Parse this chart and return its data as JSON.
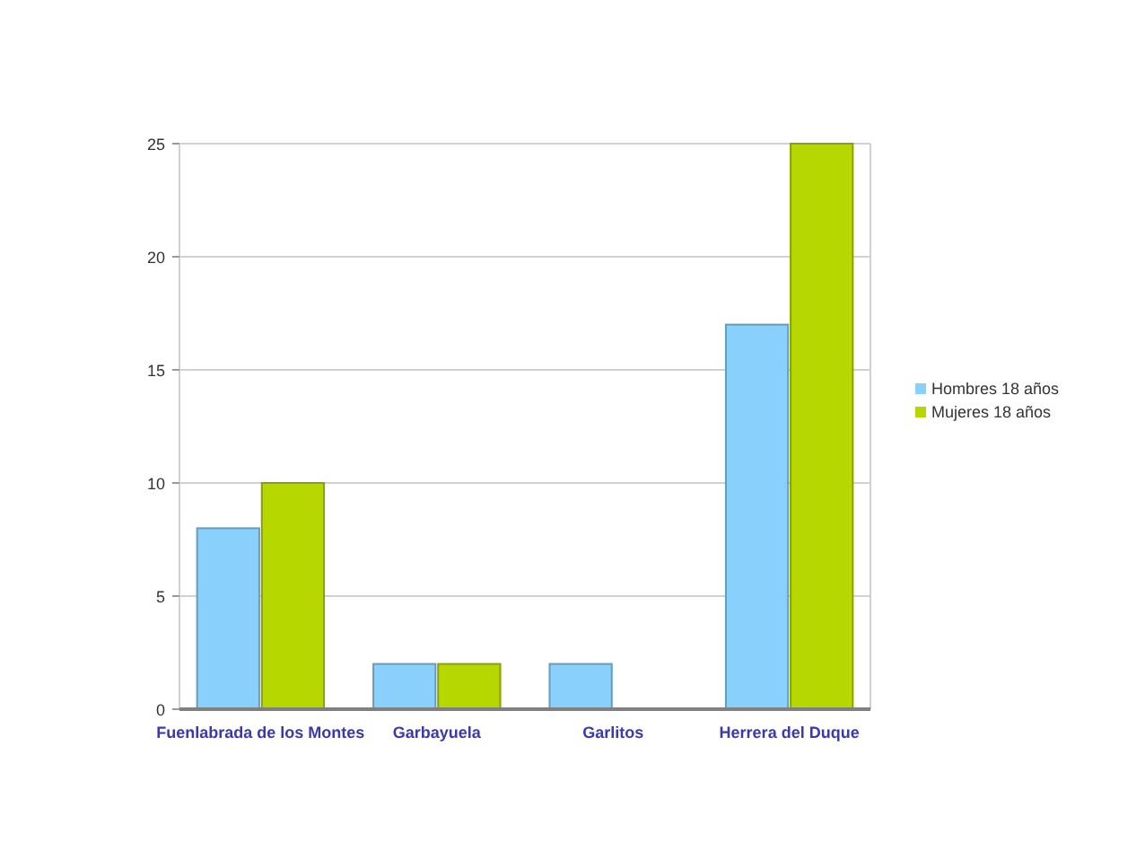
{
  "chart_data": {
    "type": "bar",
    "categories": [
      "Fuenlabrada de los Montes",
      "Garbayuela",
      "Garlitos",
      "Herrera del Duque"
    ],
    "series": [
      {
        "name": "Hombres 18 años",
        "color": "#89d0fc",
        "values": [
          8,
          2,
          2,
          17
        ]
      },
      {
        "name": "Mujeres 18 años",
        "color": "#b6d800",
        "values": [
          10,
          2,
          null,
          25
        ]
      }
    ],
    "ylim": [
      0,
      25
    ],
    "yticks": [
      0,
      5,
      10,
      15,
      20,
      25
    ],
    "grid": "y",
    "legend": "right"
  }
}
